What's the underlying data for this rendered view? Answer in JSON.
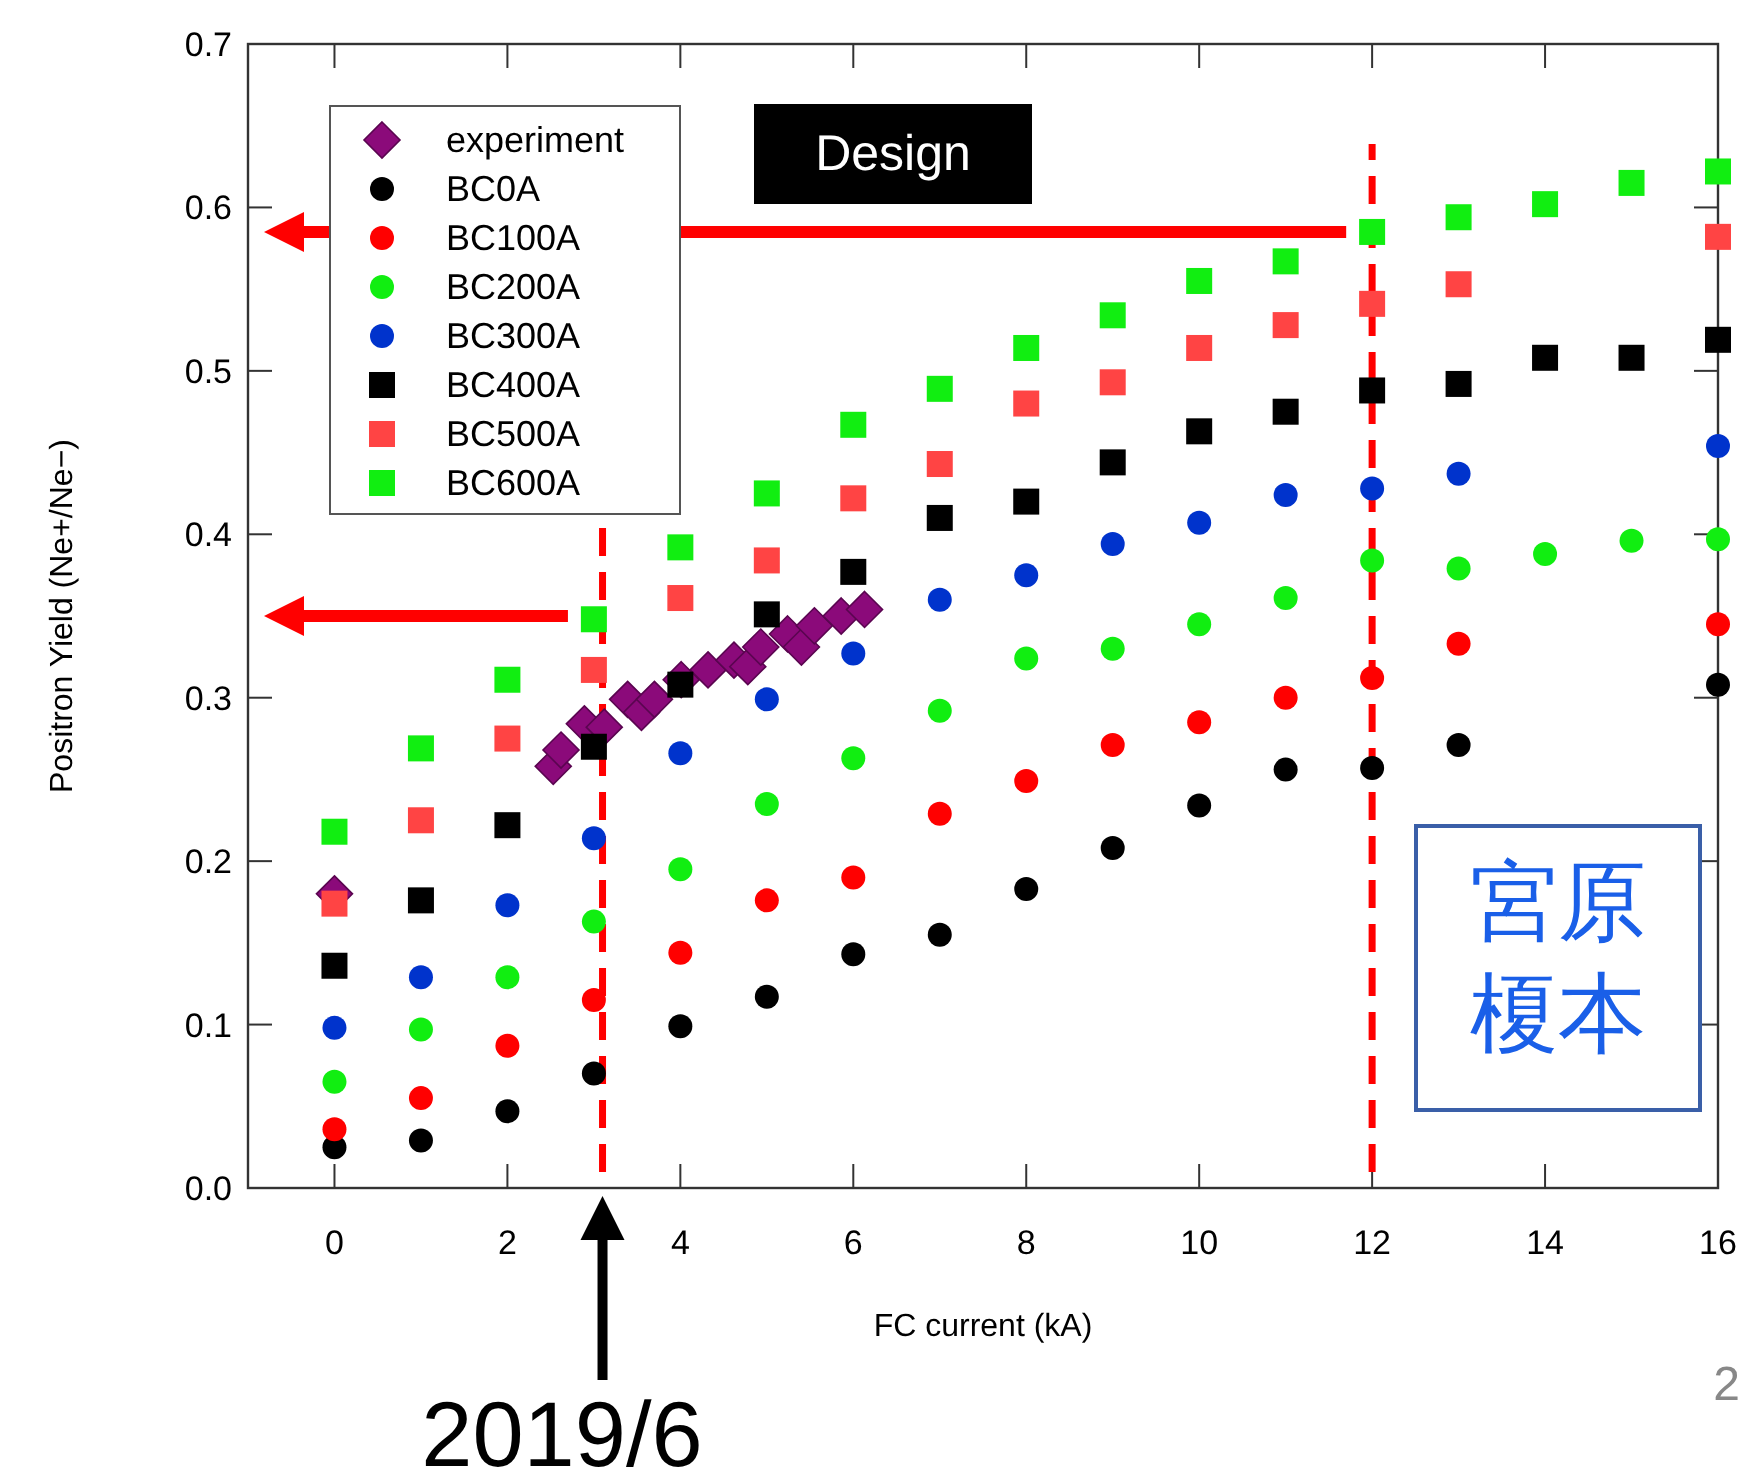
{
  "chart_data": {
    "type": "scatter",
    "xlabel": "FC current (kA)",
    "ylabel": "Positron Yield (Ne+/Ne−)",
    "xlim": [
      -1,
      16
    ],
    "xticks": [
      0,
      2,
      4,
      6,
      8,
      10,
      12,
      14,
      16
    ],
    "ylim": [
      0,
      0.7
    ],
    "yticks": [
      {
        "value": 0,
        "label": "0.0"
      },
      0.1,
      0.2,
      0.3,
      0.4,
      0.5,
      0.6,
      0.7
    ],
    "grid": false,
    "legend": "top left",
    "series": [
      {
        "name": "experiment",
        "color": "#8b0a7a",
        "marker": "diamond",
        "x": [
          0,
          2.53,
          2.62,
          2.89,
          3.12,
          3.39,
          3.55,
          3.7,
          4.01,
          4.32,
          4.62,
          4.78,
          4.93,
          5.24,
          5.4,
          5.55,
          5.86,
          6.13
        ],
        "values": [
          0.18,
          0.258,
          0.268,
          0.284,
          0.282,
          0.299,
          0.291,
          0.299,
          0.311,
          0.317,
          0.323,
          0.319,
          0.331,
          0.339,
          0.331,
          0.344,
          0.35,
          0.354
        ]
      },
      {
        "name": "BC0A",
        "color": "#000000",
        "marker": "circle",
        "x": [
          0,
          1,
          2,
          3,
          4,
          5,
          6,
          7,
          8,
          9,
          10,
          11,
          12,
          13,
          16
        ],
        "values": [
          0.025,
          0.029,
          0.047,
          0.07,
          0.099,
          0.117,
          0.143,
          0.155,
          0.183,
          0.208,
          0.234,
          0.256,
          0.257,
          0.271,
          0.308
        ]
      },
      {
        "name": "BC100A",
        "color": "#ff0000",
        "marker": "circle",
        "x": [
          0,
          1,
          2,
          3,
          4,
          5,
          6,
          7,
          8,
          9,
          10,
          11,
          12,
          13,
          16
        ],
        "values": [
          0.036,
          0.055,
          0.087,
          0.115,
          0.144,
          0.176,
          0.19,
          0.229,
          0.249,
          0.271,
          0.285,
          0.3,
          0.312,
          0.333,
          0.345
        ]
      },
      {
        "name": "BC200A",
        "color": "#11ee11",
        "marker": "circle",
        "x": [
          0,
          1,
          2,
          3,
          4,
          5,
          6,
          7,
          8,
          9,
          10,
          11,
          12,
          13,
          14,
          15,
          16
        ],
        "values": [
          0.065,
          0.097,
          0.129,
          0.163,
          0.195,
          0.235,
          0.263,
          0.292,
          0.324,
          0.33,
          0.345,
          0.361,
          0.384,
          0.379,
          0.388,
          0.396,
          0.397
        ]
      },
      {
        "name": "BC300A",
        "color": "#0033cc",
        "marker": "circle",
        "x": [
          0,
          1,
          2,
          3,
          4,
          5,
          6,
          7,
          8,
          9,
          10,
          11,
          12,
          13,
          16
        ],
        "values": [
          0.098,
          0.129,
          0.173,
          0.214,
          0.266,
          0.299,
          0.327,
          0.36,
          0.375,
          0.394,
          0.407,
          0.424,
          0.428,
          0.437,
          0.454
        ]
      },
      {
        "name": "BC400A",
        "color": "#000000",
        "marker": "square",
        "x": [
          0,
          1,
          2,
          3,
          4,
          5,
          6,
          7,
          8,
          9,
          10,
          11,
          12,
          13,
          14,
          15,
          16
        ],
        "values": [
          0.136,
          0.176,
          0.222,
          0.27,
          0.308,
          0.351,
          0.377,
          0.41,
          0.42,
          0.444,
          0.463,
          0.475,
          0.488,
          0.492,
          0.508,
          0.508,
          0.519
        ]
      },
      {
        "name": "BC500A",
        "color": "#ff4444",
        "marker": "square",
        "x": [
          0,
          1,
          2,
          3,
          4,
          5,
          6,
          7,
          8,
          9,
          10,
          11,
          12,
          13,
          16
        ],
        "values": [
          0.174,
          0.225,
          0.275,
          0.317,
          0.361,
          0.384,
          0.422,
          0.443,
          0.48,
          0.493,
          0.514,
          0.528,
          0.541,
          0.553,
          0.582
        ]
      },
      {
        "name": "BC600A",
        "color": "#11ee11",
        "marker": "square",
        "x": [
          0,
          1,
          2,
          3,
          4,
          5,
          6,
          7,
          8,
          9,
          10,
          11,
          12,
          13,
          14,
          15,
          16
        ],
        "values": [
          0.218,
          0.269,
          0.311,
          0.348,
          0.392,
          0.425,
          0.467,
          0.489,
          0.514,
          0.534,
          0.555,
          0.567,
          0.585,
          0.594,
          0.602,
          0.615,
          0.622
        ]
      }
    ],
    "ref_lines": [
      {
        "axis": "x",
        "value": 3.1,
        "color": "#ff0000",
        "line_style": "dashed"
      },
      {
        "axis": "x",
        "value": 12,
        "color": "#ff0000",
        "line_style": "dashed"
      }
    ],
    "annotations": [
      "Design",
      "宮原",
      "榎本",
      "2019/6",
      "2"
    ]
  }
}
